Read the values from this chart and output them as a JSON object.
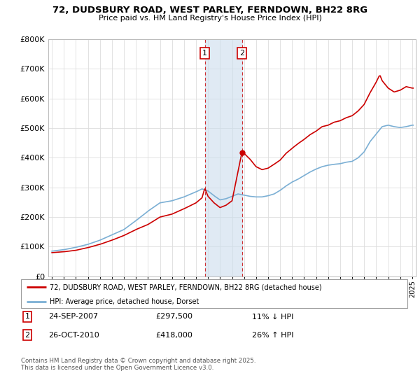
{
  "title": "72, DUDSBURY ROAD, WEST PARLEY, FERNDOWN, BH22 8RG",
  "subtitle": "Price paid vs. HM Land Registry's House Price Index (HPI)",
  "legend_line1": "72, DUDSBURY ROAD, WEST PARLEY, FERNDOWN, BH22 8RG (detached house)",
  "legend_line2": "HPI: Average price, detached house, Dorset",
  "property_color": "#cc0000",
  "hpi_color": "#7bafd4",
  "transaction1_date": "24-SEP-2007",
  "transaction1_price": "£297,500",
  "transaction1_hpi": "11% ↓ HPI",
  "transaction2_date": "26-OCT-2010",
  "transaction2_price": "£418,000",
  "transaction2_hpi": "26% ↑ HPI",
  "footnote": "Contains HM Land Registry data © Crown copyright and database right 2025.\nThis data is licensed under the Open Government Licence v3.0.",
  "ylim": [
    0,
    800000
  ],
  "yticks": [
    0,
    100000,
    200000,
    300000,
    400000,
    500000,
    600000,
    700000,
    800000
  ],
  "ytick_labels": [
    "£0",
    "£100K",
    "£200K",
    "£300K",
    "£400K",
    "£500K",
    "£600K",
    "£700K",
    "£800K"
  ],
  "transaction1_x": 2007.73,
  "transaction2_x": 2010.82,
  "shaded_xmin": 2007.73,
  "shaded_xmax": 2010.82,
  "dot1_y": 297500,
  "dot2_y": 418000,
  "xlim_left": 1994.7,
  "xlim_right": 2025.3
}
